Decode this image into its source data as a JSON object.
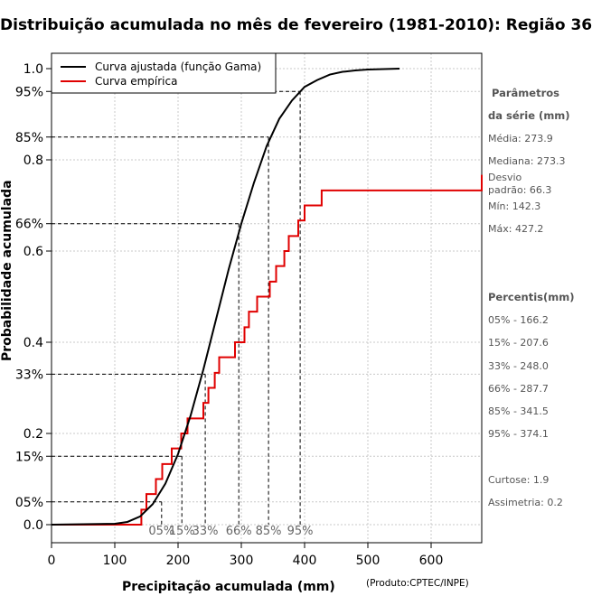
{
  "title": "Distribuição acumulada no mês de fevereiro (1981-2010): Região 36",
  "credit": "(Produto:CPTEC/INPE)",
  "sidebar": {
    "param_heading_1": "Parâmetros",
    "param_heading_2": "da série (mm)",
    "media": "Média: 273.9",
    "mediana": "Mediana: 273.3",
    "desvio_1": "Desvio",
    "desvio_2": "padrão: 66.3",
    "min": "Mín: 142.3",
    "max": "Máx: 427.2",
    "percentis_heading": "Percentis(mm)",
    "p05": "05% - 166.2",
    "p15": "15% - 207.6",
    "p33": "33% - 248.0",
    "p66": "66% - 287.7",
    "p85": "85% - 341.5",
    "p95": "95% - 374.1",
    "curtose": "Curtose: 1.9",
    "assimetria": "Assimetria: 0.2"
  },
  "chart_data": {
    "type": "line",
    "xlabel": "Precipitação acumulada (mm)",
    "ylabel": "Probabilidade acumulada",
    "xlim": [
      0,
      680
    ],
    "ylim": [
      0,
      1
    ],
    "x_ticks": [
      "0",
      "100",
      "200",
      "300",
      "400",
      "500",
      "600"
    ],
    "y_ticks": [
      {
        "value": 0.0,
        "label": "0.0"
      },
      {
        "value": 0.05,
        "label": "05%"
      },
      {
        "value": 0.15,
        "label": "15%"
      },
      {
        "value": 0.2,
        "label": "0.2"
      },
      {
        "value": 0.33,
        "label": "33%"
      },
      {
        "value": 0.4,
        "label": "0.4"
      },
      {
        "value": 0.6,
        "label": "0.6"
      },
      {
        "value": 0.66,
        "label": "66%"
      },
      {
        "value": 0.8,
        "label": "0.8"
      },
      {
        "value": 0.85,
        "label": "85%"
      },
      {
        "value": 0.95,
        "label": "95%"
      },
      {
        "value": 1.0,
        "label": "1.0"
      }
    ],
    "grid": true,
    "legend_position": "top-left",
    "series": [
      {
        "name": "Curva ajustada (função Gama)",
        "color": "#000000",
        "x": [
          0,
          100,
          120,
          140,
          160,
          180,
          200,
          220,
          240,
          260,
          280,
          300,
          320,
          340,
          360,
          380,
          400,
          420,
          440,
          460,
          480,
          500,
          550
        ],
        "y": [
          0,
          0.002,
          0.006,
          0.018,
          0.045,
          0.09,
          0.155,
          0.24,
          0.34,
          0.45,
          0.56,
          0.66,
          0.75,
          0.83,
          0.89,
          0.93,
          0.96,
          0.975,
          0.987,
          0.993,
          0.996,
          0.998,
          1.0
        ]
      },
      {
        "name": "Curva empírica",
        "color": "#e00000",
        "step_x": [
          0,
          142,
          150,
          165,
          175,
          190,
          205,
          215,
          240,
          248,
          258,
          265,
          290,
          305,
          312,
          325,
          345,
          355,
          368,
          375,
          390,
          400,
          427,
          680
        ],
        "step_y": [
          0,
          0.033,
          0.067,
          0.1,
          0.133,
          0.167,
          0.2,
          0.233,
          0.267,
          0.3,
          0.333,
          0.367,
          0.4,
          0.433,
          0.467,
          0.5,
          0.533,
          0.567,
          0.6,
          0.633,
          0.667,
          0.7,
          0.733,
          0.767
        ]
      }
    ],
    "percentile_markers": [
      {
        "p": 0.05,
        "x": 174,
        "label": "05%"
      },
      {
        "p": 0.15,
        "x": 206,
        "label": "15%"
      },
      {
        "p": 0.33,
        "x": 243,
        "label": "33%"
      },
      {
        "p": 0.66,
        "x": 296,
        "label": "66%"
      },
      {
        "p": 0.85,
        "x": 343,
        "label": "85%"
      },
      {
        "p": 0.95,
        "x": 393,
        "label": "95%"
      }
    ]
  }
}
